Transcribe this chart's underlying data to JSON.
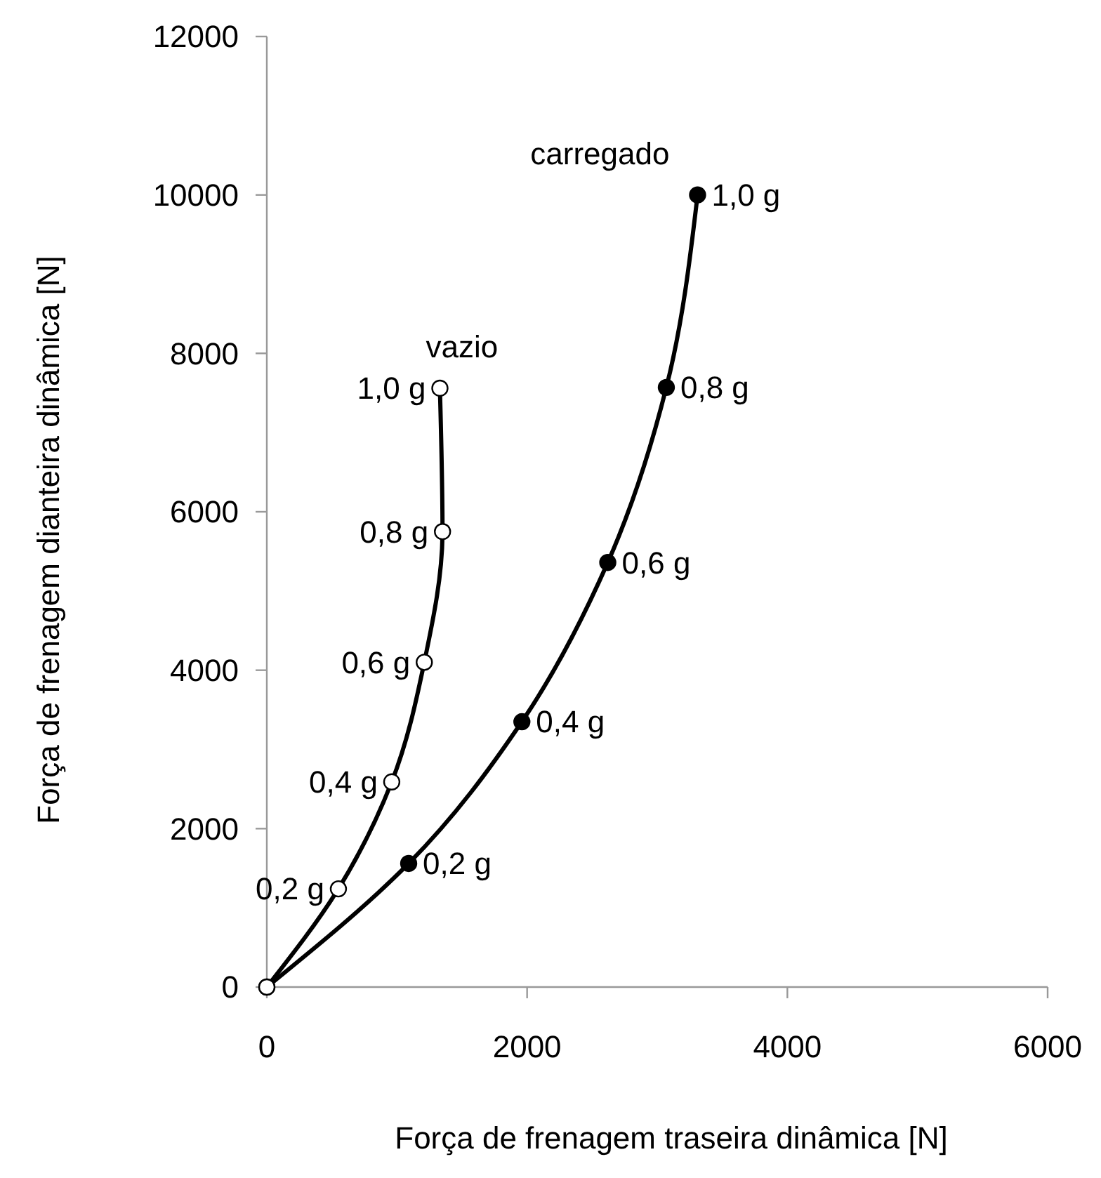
{
  "chart_data": {
    "type": "line",
    "xlabel": "Força de frenagem traseira dinâmica [N]",
    "ylabel": "Força de frenagem dianteira dinâmica [N]",
    "xlim": [
      0,
      6000
    ],
    "xticks": [
      0,
      2000,
      4000,
      6000
    ],
    "ylim": [
      0,
      12000
    ],
    "yticks": [
      0,
      2000,
      4000,
      6000,
      8000,
      10000,
      12000
    ],
    "grid": false,
    "legend": false,
    "marker": "circle",
    "series": [
      {
        "name": "carregado",
        "color": "#000000",
        "x": [
          0,
          1090,
          1960,
          2620,
          3070,
          3310
        ],
        "values": [
          0,
          1560,
          3350,
          5360,
          7570,
          10000
        ]
      },
      {
        "name": "vazio",
        "color": "#000000",
        "colors": [
          "#ffffff",
          "#ffffff",
          "#ffffff",
          "#ffffff",
          "#ffffff",
          "#ffffff"
        ],
        "x": [
          0,
          550,
          960,
          1210,
          1350,
          1330
        ],
        "values": [
          0,
          1240,
          2590,
          4100,
          5750,
          7560
        ]
      }
    ],
    "annotations": [
      {
        "text": "0,2 g",
        "x": 1090,
        "y": 1560
      },
      {
        "text": "0,4 g",
        "x": 1960,
        "y": 3350
      },
      {
        "text": "0,6 g",
        "x": 2620,
        "y": 5360
      },
      {
        "text": "0,8 g",
        "x": 3070,
        "y": 7570
      },
      {
        "text": "1,0 g",
        "x": 3310,
        "y": 10000
      },
      {
        "text": "0,2 g",
        "x": 550,
        "y": 1240
      },
      {
        "text": "0,4 g",
        "x": 960,
        "y": 2590
      },
      {
        "text": "0,6 g",
        "x": 1210,
        "y": 4100
      },
      {
        "text": "0,8 g",
        "x": 1350,
        "y": 5750
      },
      {
        "text": "1,0 g",
        "x": 1330,
        "y": 7560
      }
    ]
  }
}
